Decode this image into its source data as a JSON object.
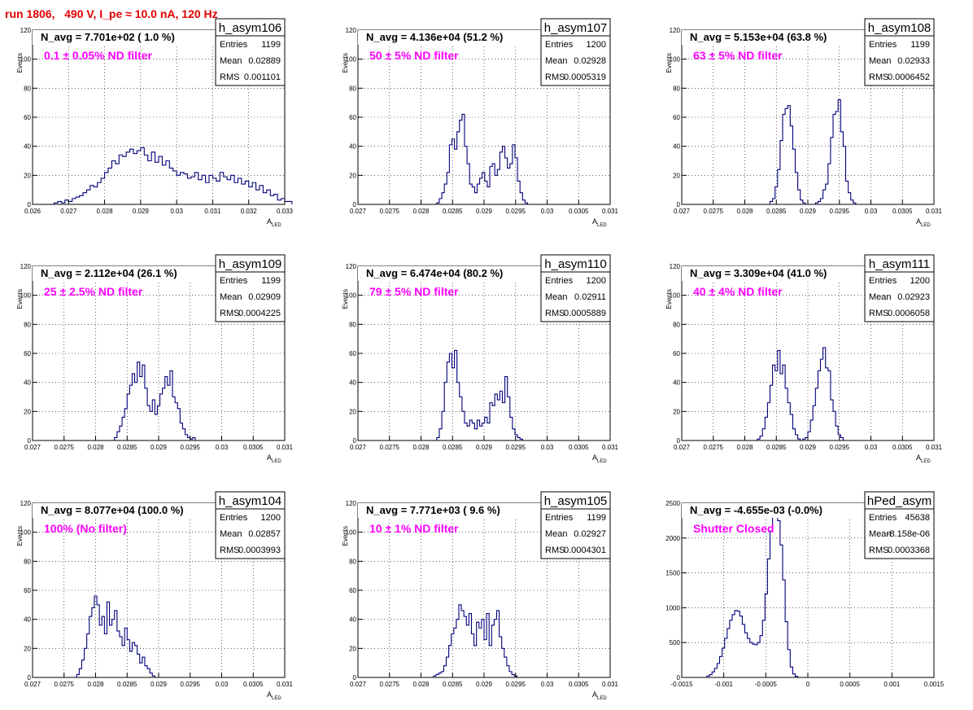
{
  "run_title": "run 1806,   490 V, I_pe ≈ 10.0 nA, 120 Hz",
  "colors": {
    "title": "#e00000",
    "annotation": "#ff00ff",
    "histogram": "#00007a",
    "grid": "#000000"
  },
  "stat_labels": {
    "entries": "Entries",
    "mean": "Mean",
    "rms": "RMS"
  },
  "chart_data": [
    {
      "type": "histogram",
      "name": "h_asym106",
      "navg": "N_avg = 7.701e+02 ( 1.0 %)",
      "annotation": "0.1 ± 0.05% ND filter",
      "stats": {
        "entries": "1199",
        "mean": "0.02889",
        "rms": "0.001101"
      },
      "ylabel": "Events",
      "xlabel": "A_LED",
      "xlim": [
        0.026,
        0.033
      ],
      "ylim": [
        0,
        120
      ],
      "grid": true,
      "xticks": [
        "0.026",
        "0.027",
        "0.028",
        "0.029",
        "0.03",
        "0.031",
        "0.032",
        "0.033"
      ],
      "yticks": [
        "0",
        "20",
        "40",
        "60",
        "80",
        "100",
        "120"
      ],
      "bin_start": 0.0266,
      "bin_width": 0.0001,
      "counts": [
        1,
        2,
        1,
        3,
        2,
        4,
        5,
        6,
        8,
        10,
        13,
        12,
        15,
        18,
        22,
        25,
        30,
        28,
        34,
        33,
        36,
        38,
        35,
        37,
        39,
        34,
        30,
        36,
        29,
        33,
        27,
        30,
        25,
        23,
        20,
        22,
        21,
        18,
        19,
        22,
        17,
        20,
        15,
        20,
        18,
        16,
        22,
        19,
        17,
        20,
        15,
        18,
        14,
        16,
        12,
        15,
        10,
        13,
        8,
        10,
        6,
        7,
        3,
        4,
        2,
        2
      ]
    },
    {
      "type": "histogram",
      "name": "h_asym107",
      "navg": "N_avg = 4.136e+04 (51.2 %)",
      "annotation": "50 ± 5% ND filter",
      "stats": {
        "entries": "1200",
        "mean": "0.02928",
        "rms": "0.0005319"
      },
      "ylabel": "Events",
      "xlabel": "A_LED",
      "xlim": [
        0.027,
        0.031
      ],
      "ylim": [
        0,
        120
      ],
      "grid": true,
      "xticks": [
        "0.027",
        "0.0275",
        "0.028",
        "0.0285",
        "0.029",
        "0.0295",
        "0.03",
        "0.0305",
        "0.031"
      ],
      "yticks": [
        "0",
        "20",
        "40",
        "60",
        "80",
        "100",
        "120"
      ],
      "bin_start": 0.02825,
      "bin_width": 4e-05,
      "counts": [
        1,
        4,
        8,
        14,
        22,
        41,
        45,
        38,
        50,
        58,
        62,
        40,
        28,
        14,
        12,
        8,
        14,
        18,
        22,
        16,
        12,
        26,
        28,
        20,
        24,
        36,
        40,
        32,
        25,
        28,
        41,
        32,
        16,
        8,
        3,
        1
      ]
    },
    {
      "type": "histogram",
      "name": "h_asym108",
      "navg": "N_avg = 5.153e+04 (63.8 %)",
      "annotation": "63 ± 5% ND filter",
      "stats": {
        "entries": "1199",
        "mean": "0.02933",
        "rms": "0.0006452"
      },
      "ylabel": "Events",
      "xlabel": "A_LED",
      "xlim": [
        0.027,
        0.031
      ],
      "ylim": [
        0,
        120
      ],
      "grid": true,
      "xticks": [
        "0.027",
        "0.0275",
        "0.028",
        "0.0285",
        "0.029",
        "0.0295",
        "0.03",
        "0.0305",
        "0.031"
      ],
      "yticks": [
        "0",
        "20",
        "40",
        "60",
        "80",
        "100",
        "120"
      ],
      "bin_start": 0.0284,
      "bin_width": 4e-05,
      "counts": [
        2,
        4,
        12,
        24,
        44,
        62,
        66,
        68,
        54,
        38,
        22,
        10,
        3,
        1,
        0,
        0,
        0,
        0,
        1,
        2,
        4,
        10,
        14,
        28,
        46,
        62,
        64,
        72,
        50,
        40,
        16,
        8,
        3,
        1
      ]
    },
    {
      "type": "histogram",
      "name": "h_asym109",
      "navg": "N_avg = 2.112e+04 (26.1 %)",
      "annotation": "25 ± 2.5% ND filter",
      "stats": {
        "entries": "1199",
        "mean": "0.02909",
        "rms": "0.0004225"
      },
      "ylabel": "Events",
      "xlabel": "A_LED",
      "xlim": [
        0.027,
        0.031
      ],
      "ylim": [
        0,
        120
      ],
      "grid": true,
      "xticks": [
        "0.027",
        "0.0275",
        "0.028",
        "0.0285",
        "0.029",
        "0.0295",
        "0.03",
        "0.0305",
        "0.031"
      ],
      "yticks": [
        "0",
        "20",
        "40",
        "60",
        "80",
        "100",
        "120"
      ],
      "bin_start": 0.0283,
      "bin_width": 4e-05,
      "counts": [
        2,
        6,
        10,
        16,
        22,
        32,
        38,
        46,
        40,
        54,
        44,
        52,
        36,
        24,
        20,
        28,
        18,
        24,
        32,
        36,
        44,
        38,
        48,
        30,
        26,
        22,
        12,
        8,
        4,
        2,
        1,
        2
      ]
    },
    {
      "type": "histogram",
      "name": "h_asym110",
      "navg": "N_avg = 6.474e+04 (80.2 %)",
      "annotation": "79 ± 5% ND filter",
      "stats": {
        "entries": "1200",
        "mean": "0.02911",
        "rms": "0.0005889"
      },
      "ylabel": "Events",
      "xlabel": "A_LED",
      "xlim": [
        0.027,
        0.031
      ],
      "ylim": [
        0,
        120
      ],
      "grid": true,
      "xticks": [
        "0.027",
        "0.0275",
        "0.028",
        "0.0285",
        "0.029",
        "0.0295",
        "0.03",
        "0.0305",
        "0.031"
      ],
      "yticks": [
        "0",
        "20",
        "40",
        "60",
        "80",
        "100",
        "120"
      ],
      "bin_start": 0.02825,
      "bin_width": 4e-05,
      "counts": [
        2,
        8,
        20,
        40,
        54,
        60,
        50,
        62,
        40,
        30,
        20,
        12,
        10,
        14,
        12,
        8,
        14,
        10,
        12,
        16,
        12,
        26,
        24,
        32,
        28,
        34,
        26,
        44,
        30,
        16,
        8,
        4,
        2,
        1
      ]
    },
    {
      "type": "histogram",
      "name": "h_asym111",
      "navg": "N_avg = 3.309e+04 (41.0 %)",
      "annotation": "40 ± 4% ND filter",
      "stats": {
        "entries": "1200",
        "mean": "0.02923",
        "rms": "0.0006058"
      },
      "ylabel": "Events",
      "xlabel": "A_LED",
      "xlim": [
        0.027,
        0.031
      ],
      "ylim": [
        0,
        120
      ],
      "grid": true,
      "xticks": [
        "0.027",
        "0.0275",
        "0.028",
        "0.0285",
        "0.029",
        "0.0295",
        "0.03",
        "0.0305",
        "0.031"
      ],
      "yticks": [
        "0",
        "20",
        "40",
        "60",
        "80",
        "100",
        "120"
      ],
      "bin_start": 0.0282,
      "bin_width": 4e-05,
      "counts": [
        1,
        3,
        8,
        16,
        26,
        38,
        52,
        48,
        62,
        46,
        52,
        36,
        26,
        18,
        8,
        4,
        1,
        0,
        1,
        2,
        6,
        14,
        24,
        36,
        48,
        56,
        64,
        50,
        48,
        28,
        20,
        10,
        4,
        2
      ]
    },
    {
      "type": "histogram",
      "name": "h_asym104",
      "navg": "N_avg = 8.077e+04 (100.0 %)",
      "annotation": "100% (No filter)",
      "stats": {
        "entries": "1200",
        "mean": "0.02857",
        "rms": "0.0003993"
      },
      "ylabel": "Events",
      "xlabel": "A_LED",
      "xlim": [
        0.027,
        0.031
      ],
      "ylim": [
        0,
        120
      ],
      "grid": true,
      "xticks": [
        "0.027",
        "0.0275",
        "0.028",
        "0.0285",
        "0.029",
        "0.0295",
        "0.03",
        "0.0305",
        "0.031"
      ],
      "yticks": [
        "0",
        "20",
        "40",
        "60",
        "80",
        "100",
        "120"
      ],
      "bin_start": 0.0277,
      "bin_width": 4e-05,
      "counts": [
        2,
        6,
        12,
        20,
        30,
        42,
        48,
        56,
        50,
        36,
        42,
        30,
        52,
        36,
        40,
        46,
        32,
        28,
        22,
        34,
        26,
        18,
        24,
        22,
        16,
        10,
        14,
        8,
        6,
        3,
        1
      ]
    },
    {
      "type": "histogram",
      "name": "h_asym105",
      "navg": "N_avg = 7.771e+03 ( 9.6 %)",
      "annotation": "10 ± 1% ND filter",
      "stats": {
        "entries": "1199",
        "mean": "0.02927",
        "rms": "0.0004301"
      },
      "ylabel": "Events",
      "xlabel": "A_LED",
      "xlim": [
        0.027,
        0.031
      ],
      "ylim": [
        0,
        120
      ],
      "grid": true,
      "xticks": [
        "0.027",
        "0.0275",
        "0.028",
        "0.0285",
        "0.029",
        "0.0295",
        "0.03",
        "0.0305",
        "0.031"
      ],
      "yticks": [
        "0",
        "20",
        "40",
        "60",
        "80",
        "100",
        "120"
      ],
      "bin_start": 0.0282,
      "bin_width": 4e-05,
      "counts": [
        1,
        2,
        3,
        4,
        8,
        14,
        22,
        30,
        34,
        40,
        50,
        46,
        42,
        36,
        44,
        30,
        22,
        38,
        34,
        40,
        26,
        44,
        22,
        36,
        40,
        46,
        28,
        20,
        14,
        8,
        4,
        2,
        1
      ]
    },
    {
      "type": "histogram",
      "name": "hPed_asym",
      "navg": "N_avg = -4.655e-03 (-0.0%)",
      "annotation": "Shutter Closed",
      "stats": {
        "entries": "45638",
        "mean": "-8.158e-06",
        "rms": "0.0003368"
      },
      "ylabel": "",
      "xlabel": "",
      "xlim": [
        -0.0015,
        0.0015
      ],
      "ylim": [
        0,
        2500
      ],
      "grid": true,
      "xticks": [
        "-0.0015",
        "-0.001",
        "-0.0005",
        "0",
        "0.0005",
        "0.001",
        "0.0015"
      ],
      "yticks": [
        "0",
        "500",
        "1000",
        "1500",
        "2000",
        "2500"
      ],
      "bin_start": -0.0012,
      "bin_width": 3e-05,
      "counts": [
        20,
        40,
        80,
        130,
        200,
        300,
        420,
        560,
        700,
        820,
        900,
        960,
        950,
        880,
        760,
        640,
        560,
        500,
        480,
        470,
        500,
        600,
        820,
        1200,
        1700,
        2100,
        2300,
        2350,
        2250,
        1900,
        1400,
        800,
        400,
        150,
        50,
        15
      ]
    }
  ]
}
